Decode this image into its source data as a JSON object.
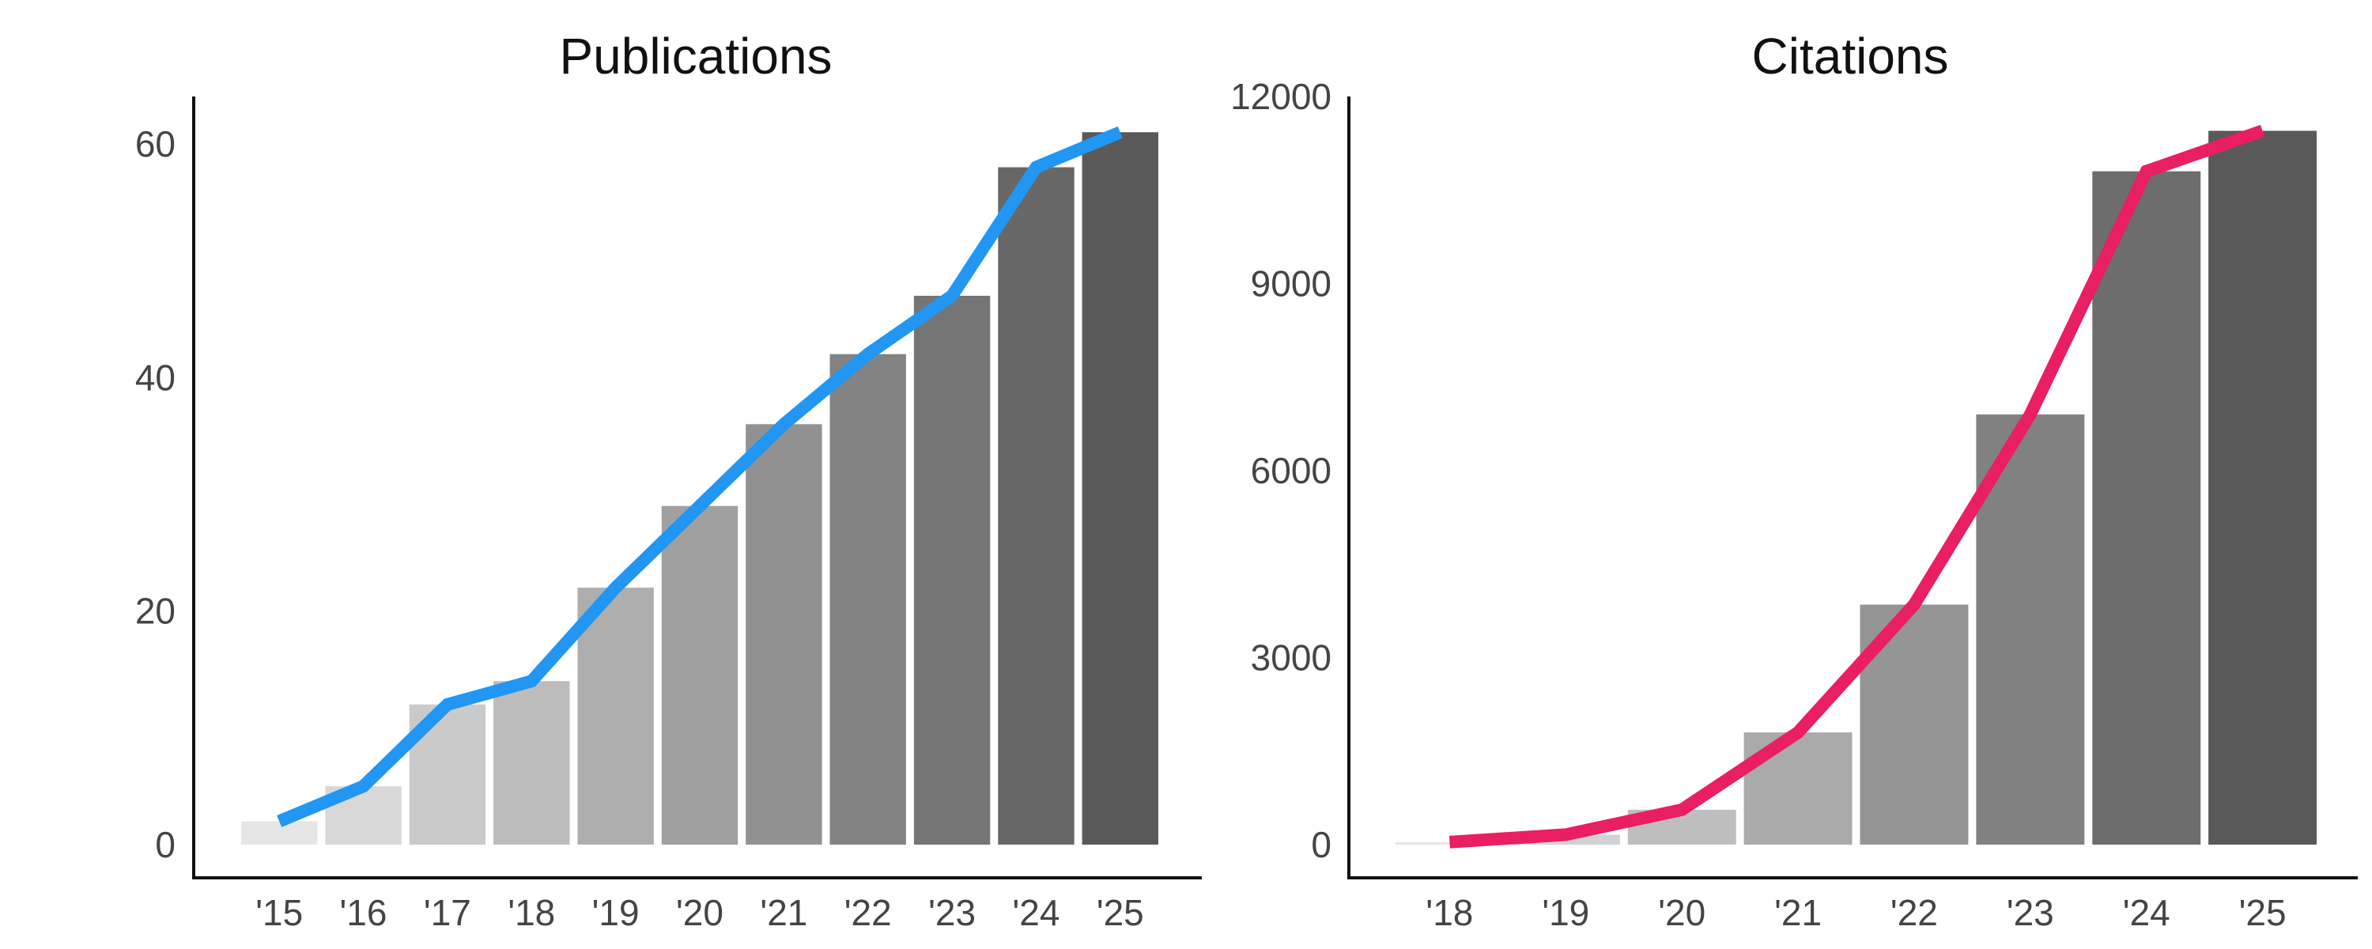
{
  "colors": {
    "background": "#ffffff",
    "axis": "#111111",
    "tick_text": "#444444",
    "publications_line": "#2196f3",
    "citations_line": "#e91e63",
    "bar_light": "#e6e6e6",
    "bar_dark": "#595959"
  },
  "chart_data": [
    {
      "type": "bar",
      "title": "Publications",
      "xlabel": "",
      "ylabel": "",
      "categories": [
        "'15",
        "'16",
        "'17",
        "'18",
        "'19",
        "'20",
        "'21",
        "'22",
        "'23",
        "'24",
        "'25"
      ],
      "values": [
        2,
        5,
        12,
        14,
        22,
        29,
        36,
        42,
        47,
        58,
        61
      ],
      "line_values": [
        2,
        5,
        12,
        14,
        22,
        29,
        36,
        42,
        47,
        58,
        61
      ],
      "yticks": [
        "0",
        "20",
        "40",
        "60"
      ],
      "ylim": [
        0,
        60
      ],
      "grid": false,
      "legend": "none",
      "line_color": "#2196f3"
    },
    {
      "type": "bar",
      "title": "Citations",
      "xlabel": "",
      "ylabel": "",
      "categories": [
        "'18",
        "'19",
        "'20",
        "'21",
        "'22",
        "'23",
        "'24",
        "'25"
      ],
      "values": [
        40,
        160,
        560,
        1800,
        3850,
        6900,
        10800,
        11450
      ],
      "line_values": [
        40,
        160,
        560,
        1800,
        3850,
        6900,
        10800,
        11450
      ],
      "yticks": [
        "0",
        "3000",
        "6000",
        "9000",
        "12000"
      ],
      "ylim": [
        0,
        12000
      ],
      "grid": false,
      "legend": "none",
      "line_color": "#e91e63"
    }
  ]
}
